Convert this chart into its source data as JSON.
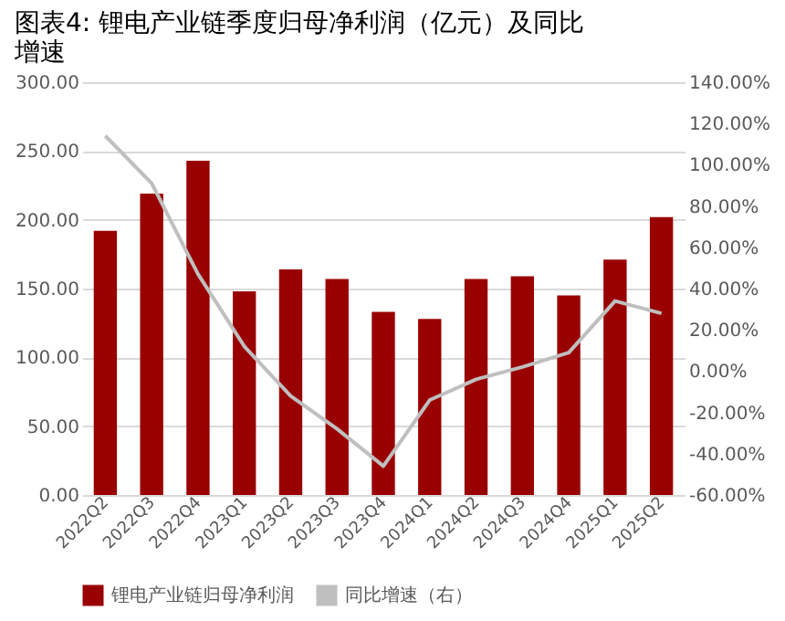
{
  "chart_data": {
    "type": "bar",
    "title": "图表4: 锂电产业链季度归母净利润（亿元）及同比增速",
    "categories": [
      "2022Q2",
      "2022Q3",
      "2022Q4",
      "2023Q1",
      "2023Q2",
      "2023Q3",
      "2023Q4",
      "2024Q1",
      "2024Q2",
      "2024Q3",
      "2024Q4",
      "2025Q1",
      "2025Q2"
    ],
    "series": [
      {
        "name": "锂电产业链归母净利润",
        "color": "#990000",
        "values": [
          192,
          219,
          243,
          148,
          164,
          157,
          133,
          128,
          157,
          159,
          145,
          171,
          202
        ]
      },
      {
        "name": "同比增速（右）",
        "type": "line",
        "axis": "y2",
        "color": "#bfbfbf",
        "values": [
          114,
          91,
          47,
          12,
          -12,
          -28,
          -46,
          -14,
          -4,
          2,
          9,
          34,
          28
        ]
      }
    ],
    "ylim": [
      0,
      300
    ],
    "yticks": [
      {
        "value": 0,
        "label": "0.00"
      },
      {
        "value": 50,
        "label": "50.00"
      },
      {
        "value": 100,
        "label": "100.00"
      },
      {
        "value": 150,
        "label": "150.00"
      },
      {
        "value": 200,
        "label": "200.00"
      },
      {
        "value": 250,
        "label": "250.00"
      },
      {
        "value": 300,
        "label": "300.00"
      }
    ],
    "y2lim": [
      -60,
      140
    ],
    "y2ticks": [
      {
        "value": -60,
        "label": "-60.00%"
      },
      {
        "value": -40,
        "label": "-40.00%"
      },
      {
        "value": -20,
        "label": "-20.00%"
      },
      {
        "value": 0,
        "label": "0.00%"
      },
      {
        "value": 20,
        "label": "20.00%"
      },
      {
        "value": 40,
        "label": "40.00%"
      },
      {
        "value": 60,
        "label": "60.00%"
      },
      {
        "value": 80,
        "label": "80.00%"
      },
      {
        "value": 100,
        "label": "100.00%"
      },
      {
        "value": 120,
        "label": "120.00%"
      },
      {
        "value": 140,
        "label": "140.00%"
      }
    ],
    "grid": "y",
    "legend": "bottom",
    "marker": "none",
    "line_style": "solid"
  }
}
